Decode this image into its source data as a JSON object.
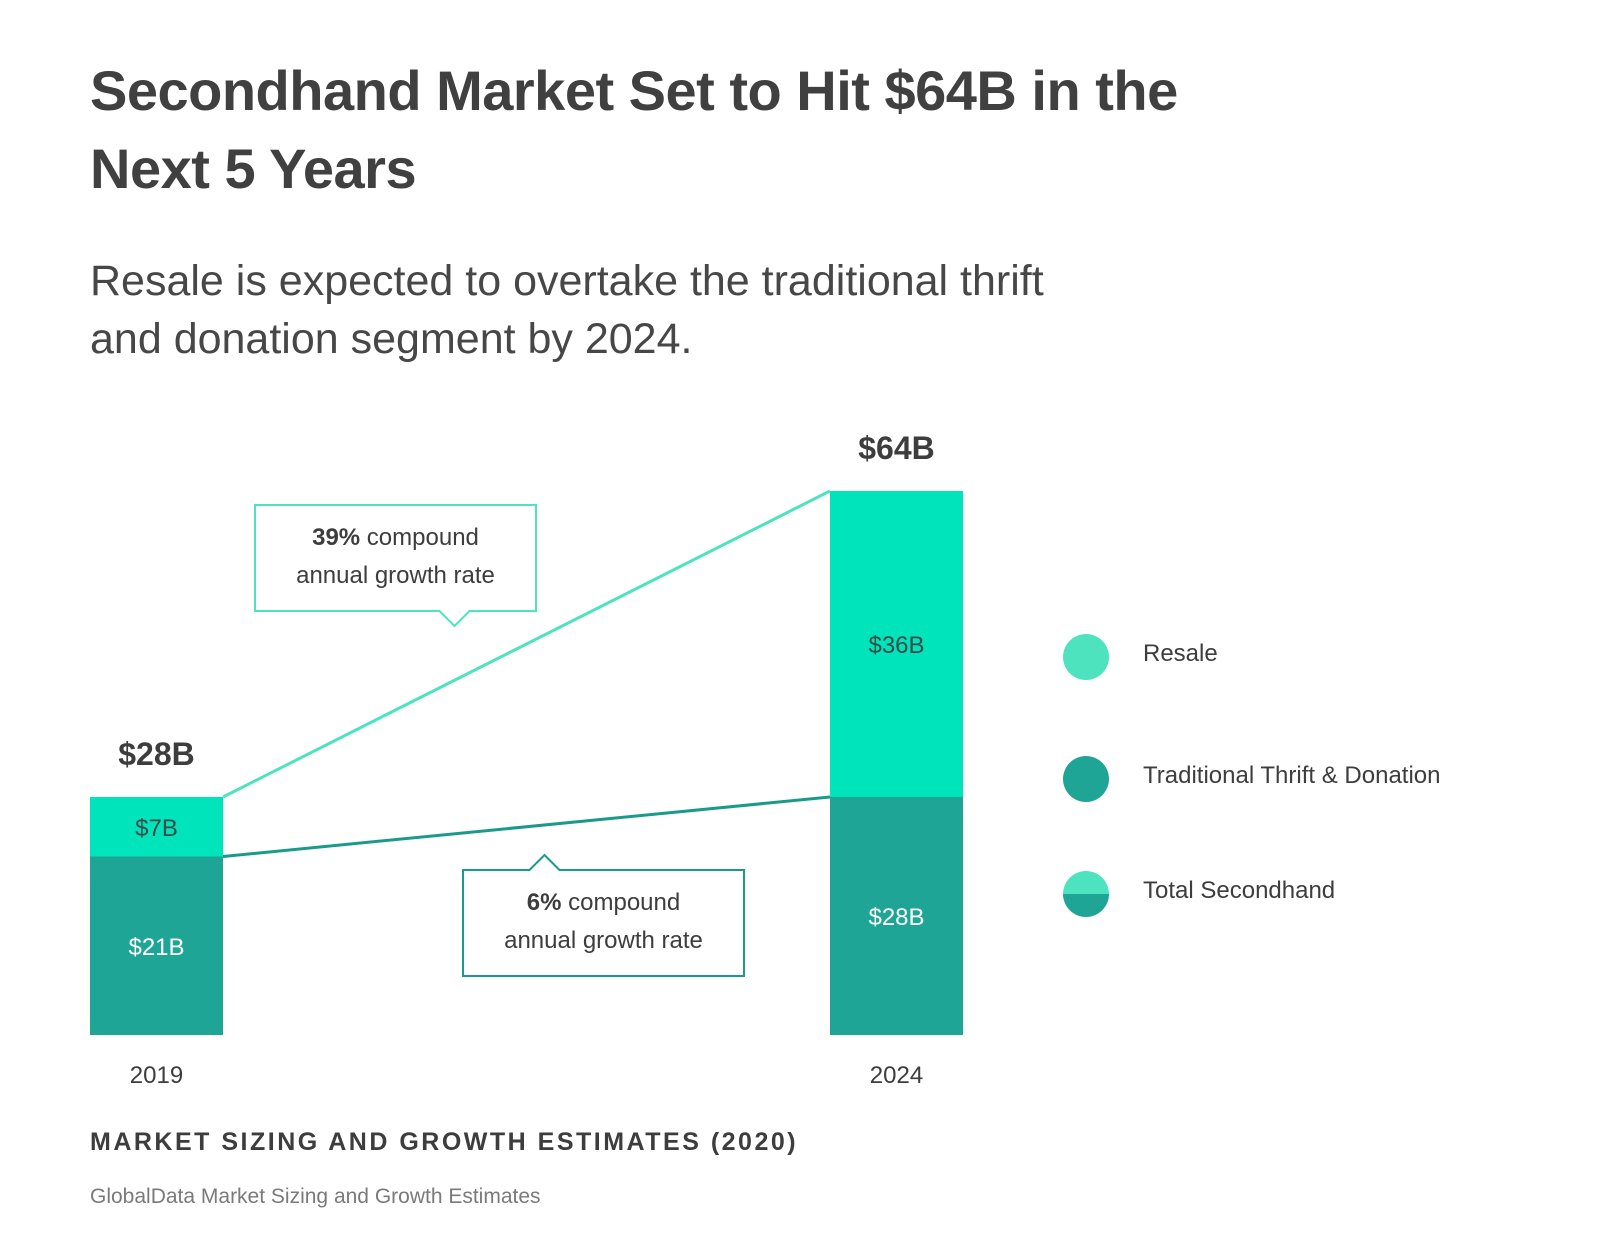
{
  "title": "Secondhand Market Set to Hit $64B in the Next 5 Years",
  "subtitle": "Resale is expected to overtake the traditional thrift and donation segment by 2024.",
  "chart_data": {
    "type": "bar",
    "stacked": true,
    "categories": [
      "2019",
      "2024"
    ],
    "series": [
      {
        "name": "Traditional Thrift & Donation",
        "values": [
          21,
          28
        ],
        "labels": [
          "$21B",
          "$28B"
        ],
        "color": "#1fa596"
      },
      {
        "name": "Resale",
        "values": [
          7,
          36
        ],
        "labels": [
          "$7B",
          "$36B"
        ],
        "color": "#00e4bc"
      }
    ],
    "totals": {
      "values": [
        28,
        64
      ],
      "labels": [
        "$28B",
        "$64B"
      ]
    },
    "annotations": [
      {
        "bold": "39%",
        "text": " compound",
        "line2": "annual growth rate",
        "series": "Resale"
      },
      {
        "bold": "6%",
        "text": " compound",
        "line2": "annual growth rate",
        "series": "Traditional Thrift & Donation"
      }
    ],
    "legend": {
      "placement": "right",
      "items": [
        {
          "label": "Resale",
          "icon": "resale-circle-icon",
          "color": "#4de3bf"
        },
        {
          "label": "Traditional Thrift & Donation",
          "icon": "thrift-circle-icon",
          "color": "#1fa596"
        },
        {
          "label": "Total Secondhand",
          "icon": "split-circle-icon",
          "colors": [
            "#4de3bf",
            "#1fa596"
          ]
        }
      ]
    },
    "ylim": [
      0,
      64
    ],
    "grid": false
  },
  "footer_title": "MARKET SIZING AND GROWTH ESTIMATES (2020)",
  "source": "GlobalData Market Sizing and Growth Estimates"
}
